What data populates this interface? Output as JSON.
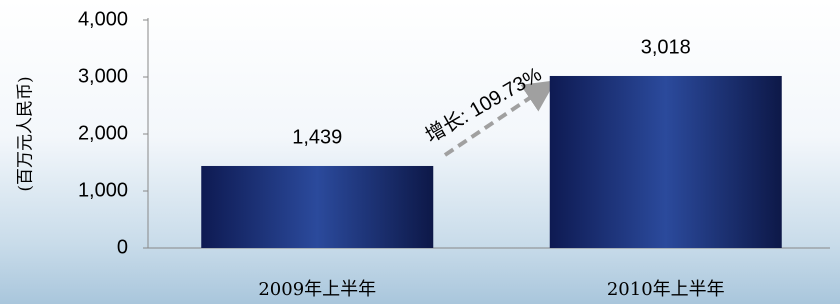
{
  "chart_data": {
    "type": "bar",
    "y_label": "(百万元人民币)",
    "categories": [
      "2009年上半年",
      "2010年上半年"
    ],
    "values": [
      1439,
      3018
    ],
    "value_labels": [
      "1,439",
      "3,018"
    ],
    "color": "#1c2d72",
    "ylim": [
      0,
      4000
    ],
    "yticks": [
      0,
      {
        "value": 1000,
        "label": "1,000"
      },
      {
        "value": 2000,
        "label": "2,000"
      },
      {
        "value": 3000,
        "label": "3,000"
      },
      {
        "value": 4000,
        "label": "4,000"
      }
    ],
    "annotation": "增长: 109.73%"
  }
}
